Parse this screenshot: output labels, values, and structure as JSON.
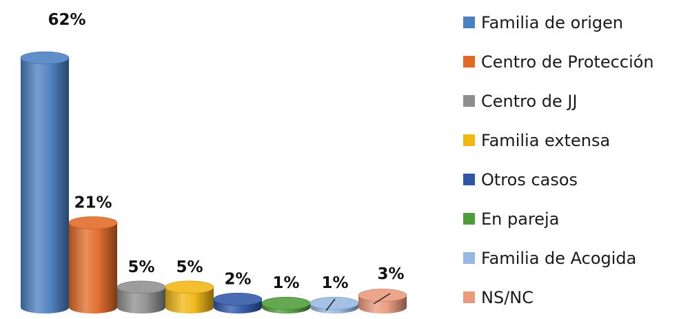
{
  "chart_data": {
    "type": "bar",
    "style": "3d-cylinder",
    "title": "",
    "xlabel": "",
    "ylabel": "",
    "ylim": [
      0,
      62
    ],
    "grid": false,
    "legend_position": "right",
    "categories": [
      "Familia de origen",
      "Centro de Protección",
      "Centro de JJ",
      "Familia extensa",
      "Otros casos",
      "En pareja",
      "Familia de Acogida",
      "NS/NC"
    ],
    "values": [
      62,
      21,
      5,
      5,
      2,
      1,
      1,
      3
    ],
    "data_labels": [
      "62%",
      "21%",
      "5%",
      "5%",
      "2%",
      "1%",
      "1%",
      "3%"
    ],
    "colors": [
      "#4a7fc0",
      "#e06a26",
      "#8e8e8e",
      "#f2b613",
      "#2f57a8",
      "#4f9c3a",
      "#97b8e2",
      "#eb9a7b"
    ]
  }
}
